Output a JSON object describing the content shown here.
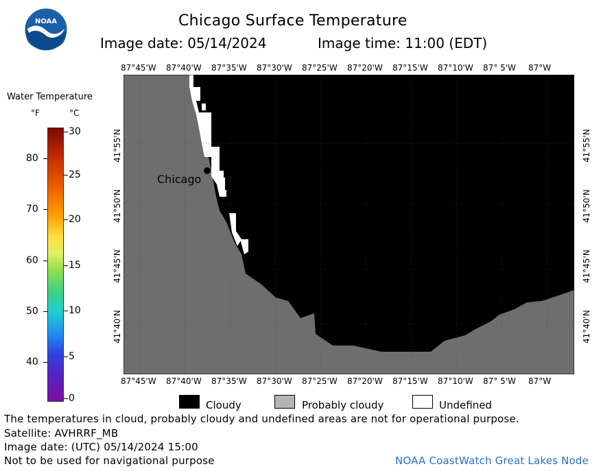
{
  "header": {
    "title": "Chicago Surface Temperature",
    "image_date": "Image date: 05/14/2024",
    "image_time": "Image time: 11:00 (EDT)"
  },
  "logo": {
    "text": "NOAA"
  },
  "colorbar": {
    "title": "Water Temperature",
    "unit_f": "°F",
    "unit_c": "°C",
    "f_ticks": [
      "80",
      "70",
      "60",
      "50",
      "40"
    ],
    "c_ticks": [
      "30",
      "25",
      "20",
      "15",
      "10",
      "5",
      "0"
    ]
  },
  "map": {
    "lon_labels_top": [
      "87°45'W",
      "87°40'W",
      "87°35'W",
      "87°30'W",
      "87°25'W",
      "87°20'W",
      "87°15'W",
      "87°10'W",
      "87° 5'W",
      "87°W"
    ],
    "lon_labels_bottom": [
      "87°45'W",
      "87°40'W",
      "87°35'W",
      "87°30'W",
      "87°25'W",
      "87°20'W",
      "87°15'W",
      "87°10'W",
      "87° 5'W",
      "87°W"
    ],
    "lat_labels_left": [
      "41°55'N",
      "41°50'N",
      "41°45'N",
      "41°40'N"
    ],
    "lat_labels_right": [
      "41°55'N",
      "41°50'N",
      "41°45'N",
      "41°40'N"
    ],
    "city_label": "Chicago",
    "land_color": "#6e6e6e",
    "cloud_color": "#000000"
  },
  "legend": {
    "cloudy": "Cloudy",
    "probably_cloudy": "Probably cloudy",
    "undefined": "Undefined"
  },
  "footer": {
    "disclaimer": "The temperatures in cloud, probably cloudy and undefined areas are not for operational purpose.",
    "satellite": "Satellite: AVHRRF_MB",
    "utc_date": "Image date: (UTC) 05/14/2024  15:00",
    "nav_warning": "Not to be used for navigational purpose",
    "credit": "NOAA CoastWatch Great Lakes Node"
  }
}
